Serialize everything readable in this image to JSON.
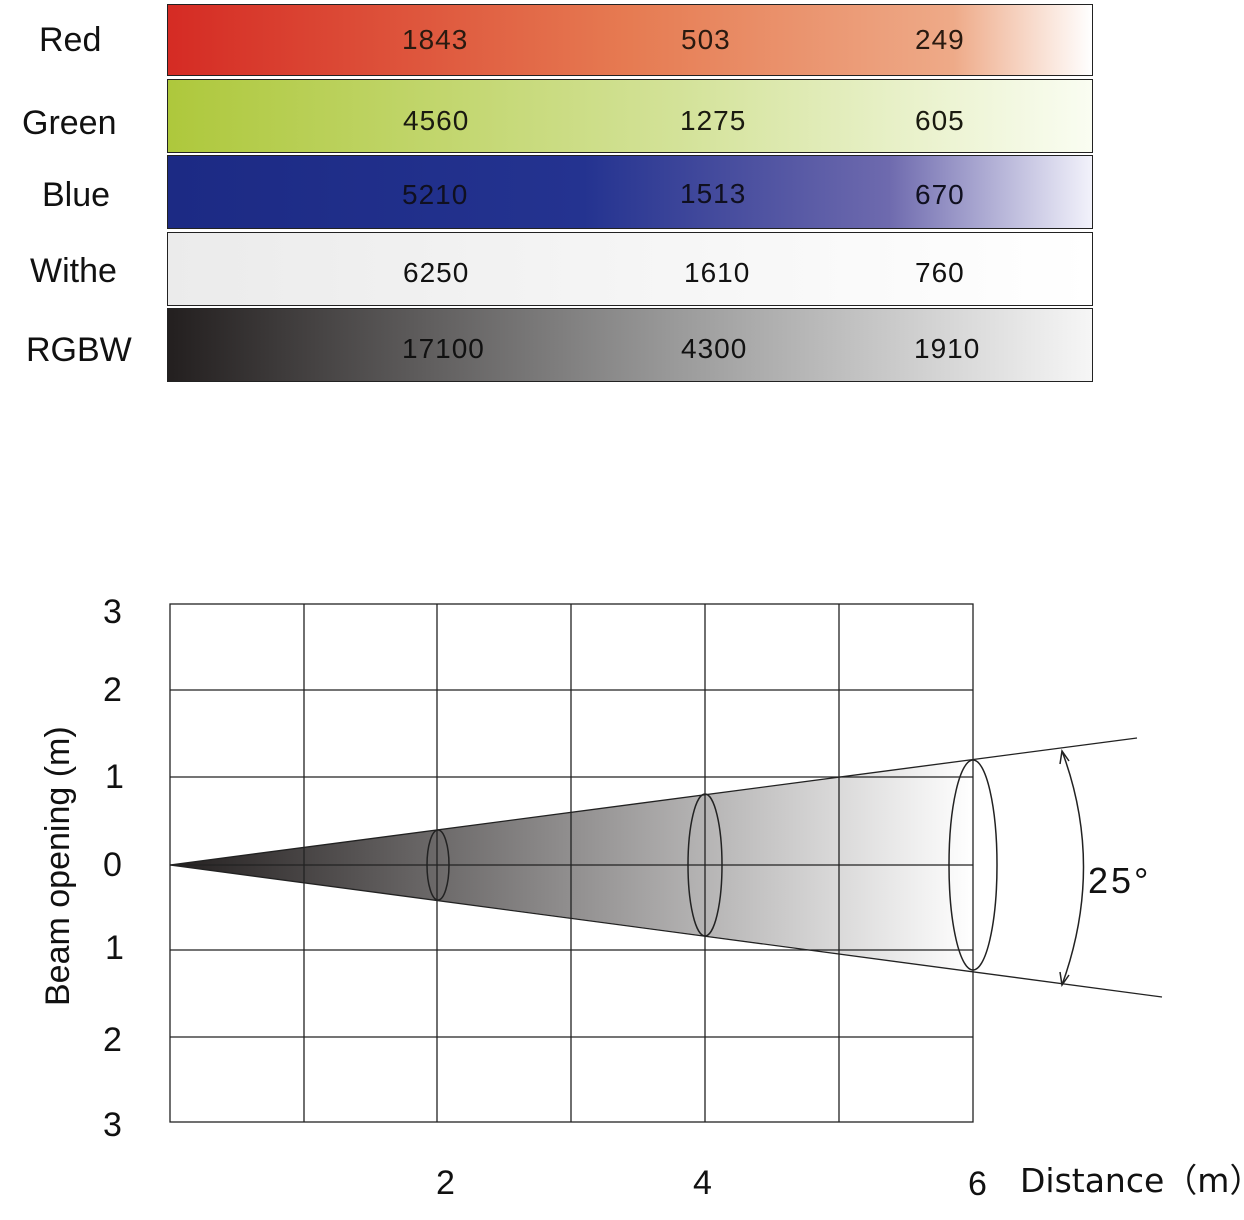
{
  "table": {
    "rows": [
      {
        "label": "Red",
        "values": [
          "1843",
          "503",
          "249"
        ],
        "gradient": [
          "#d52b24",
          "#e67b52",
          "#ffffff"
        ],
        "text_color": "#2a1a10"
      },
      {
        "label": "Green",
        "values": [
          "4560",
          "1275",
          "605"
        ],
        "gradient": [
          "#aec83c",
          "#d3e298",
          "#fafdf2"
        ],
        "text_color": "#1a1a10"
      },
      {
        "label": "Blue",
        "values": [
          "5210",
          "1513",
          "670"
        ],
        "gradient": [
          "#1c2a84",
          "#243390",
          "#f2f2fb"
        ],
        "text_color": "#101020"
      },
      {
        "label": "Withe",
        "values": [
          "6250",
          "1610",
          "760"
        ],
        "gradient": [
          "#ebebeb",
          "#f6f6f6",
          "#ffffff"
        ],
        "text_color": "#111111"
      },
      {
        "label": "RGBW",
        "values": [
          "17100",
          "4300",
          "1910"
        ],
        "gradient": [
          "#231f1f",
          "#9a9a9a",
          "#f6f6f6"
        ],
        "text_color": "#111111"
      }
    ]
  },
  "beam": {
    "y_axis_label": "Beam opening (m)",
    "y_ticks": [
      "3",
      "2",
      "1",
      "0",
      "1",
      "2",
      "3"
    ],
    "x_ticks": [
      "2",
      "4",
      "6"
    ],
    "x_axis_label": "Distance（m）",
    "angle_label": "25°",
    "cone_colors": [
      "#231f1f",
      "#ffffff"
    ]
  }
}
